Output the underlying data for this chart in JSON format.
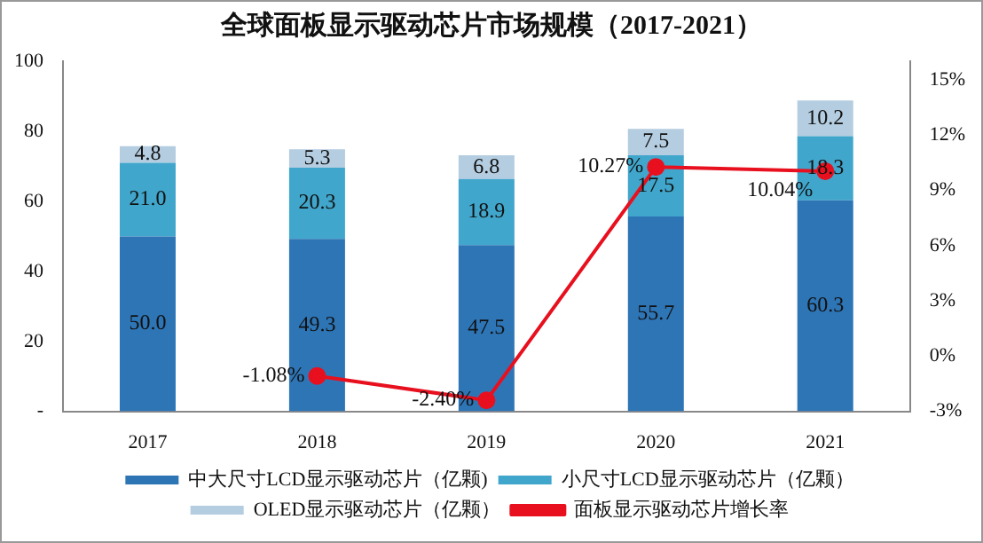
{
  "chart_data": {
    "type": "bar",
    "title": "全球面板显示驱动芯片市场规模（2017-2021）",
    "stacked": true,
    "categories": [
      "2017",
      "2018",
      "2019",
      "2020",
      "2021"
    ],
    "series": [
      {
        "name": "中大尺寸LCD显示驱动芯片（亿颗)",
        "color": "#2e75b6",
        "values": [
          50.0,
          49.3,
          47.5,
          55.7,
          60.3
        ],
        "value_labels": [
          "50.0",
          "49.3",
          "47.5",
          "55.7",
          "60.3"
        ]
      },
      {
        "name": "小尺寸LCD显示驱动芯片（亿颗）",
        "color": "#41a6cc",
        "values": [
          21.0,
          20.3,
          18.9,
          17.5,
          18.3
        ],
        "value_labels": [
          "21.0",
          "20.3",
          "18.9",
          "17.5",
          "18.3"
        ]
      },
      {
        "name": "OLED显示驱动芯片（亿颗）",
        "color": "#b4cde0",
        "values": [
          4.8,
          5.3,
          6.8,
          7.5,
          10.2
        ],
        "value_labels": [
          "4.8",
          "5.3",
          "6.8",
          "7.5",
          "10.2"
        ]
      },
      {
        "name": "面板显示驱动芯片增长率",
        "type": "line",
        "axis": "y2",
        "color": "#e8101e",
        "values": [
          null,
          -1.08,
          -2.4,
          10.27,
          10.04
        ],
        "value_labels": [
          null,
          "-1.08%",
          "-2.40%",
          "10.27%",
          "10.04%"
        ]
      }
    ],
    "ylim": [
      0,
      100
    ],
    "yticks": [
      {
        "value": 0,
        "label": "-"
      },
      20,
      40,
      60,
      80,
      100
    ],
    "y2lim": [
      -3,
      16
    ],
    "y2ticks": [
      {
        "value": -3,
        "label": "-3%"
      },
      {
        "value": 0,
        "label": "0%"
      },
      {
        "value": 3,
        "label": "3%"
      },
      {
        "value": 6,
        "label": "6%"
      },
      {
        "value": 9,
        "label": "9%"
      },
      {
        "value": 12,
        "label": "12%"
      },
      {
        "value": 15,
        "label": "15%"
      }
    ],
    "marker": "circle",
    "grid": false,
    "legend": "bottom"
  }
}
